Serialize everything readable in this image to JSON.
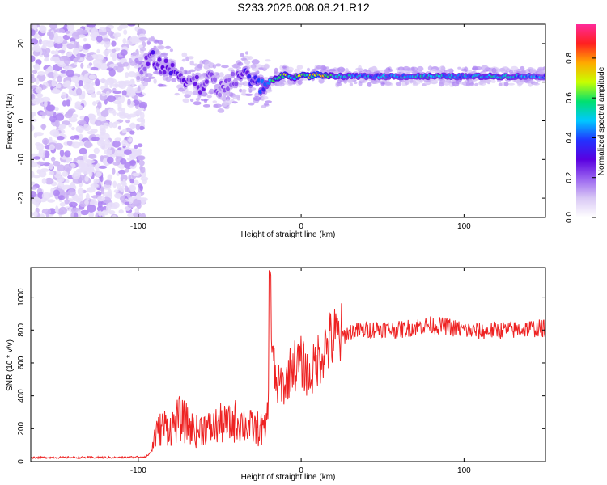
{
  "title": "S233.2026.008.08.21.R12",
  "colors": {
    "snr_line": "#ee2222",
    "colormap": [
      "#ffffff",
      "#d9c8f5",
      "#9a64f0",
      "#5a00e0",
      "#2233ff",
      "#00c8ff",
      "#00e070",
      "#c8ff00",
      "#ffaa00",
      "#ff2020",
      "#ff2a9a"
    ]
  },
  "chart_data": [
    {
      "type": "heatmap",
      "xlabel": "Height of straight line (km)",
      "ylabel": "Frequency (Hz)",
      "xlim": [
        -166,
        150
      ],
      "ylim": [
        -25,
        25
      ],
      "xticks": [
        -100,
        0,
        100
      ],
      "yticks": [
        -20,
        -10,
        0,
        10,
        20
      ],
      "colorbar": {
        "label": "Normalized spectral amplitude",
        "range": [
          0,
          0.97
        ],
        "ticks": [
          0.0,
          0.2,
          0.4,
          0.6,
          0.8
        ]
      },
      "ridge": {
        "x": [
          -100,
          -95,
          -90,
          -85,
          -80,
          -75,
          -70,
          -65,
          -60,
          -55,
          -50,
          -45,
          -40,
          -35,
          -30,
          -25,
          -20,
          -15,
          -10,
          -5,
          0,
          5,
          10,
          20,
          40,
          60,
          80,
          100,
          120,
          150
        ],
        "freq": [
          11,
          15,
          16,
          14,
          13,
          12,
          11,
          10,
          9,
          11,
          8,
          9,
          11,
          13,
          10,
          9,
          10,
          11,
          12,
          11,
          12,
          11.5,
          12,
          11.5,
          11.5,
          11.5,
          11.5,
          11.5,
          11.5,
          11.5
        ],
        "amplitude": [
          0.18,
          0.3,
          0.35,
          0.3,
          0.35,
          0.32,
          0.3,
          0.28,
          0.3,
          0.3,
          0.25,
          0.25,
          0.3,
          0.35,
          0.4,
          0.45,
          0.55,
          0.7,
          0.8,
          0.6,
          0.8,
          0.75,
          0.9,
          0.6,
          0.55,
          0.55,
          0.6,
          0.55,
          0.6,
          0.5
        ]
      }
    },
    {
      "type": "line",
      "xlabel": "Height of straight line (km)",
      "ylabel": "SNR (10 * v/v)",
      "xlim": [
        -166,
        150
      ],
      "ylim": [
        0,
        1180
      ],
      "xticks": [
        -100,
        0,
        100
      ],
      "yticks": [
        0,
        200,
        400,
        600,
        800,
        1000
      ],
      "series": [
        {
          "x": [
            -166,
            -150,
            -130,
            -110,
            -95,
            -92,
            -90,
            -85,
            -80,
            -75,
            -70,
            -65,
            -60,
            -55,
            -50,
            -45,
            -40,
            -35,
            -30,
            -25,
            -22,
            -20,
            -19,
            -18,
            -15,
            -12,
            -10,
            -8,
            -5,
            -3,
            0,
            3,
            5,
            10,
            15,
            20,
            25,
            30,
            40,
            50,
            60,
            70,
            80,
            90,
            100,
            110,
            120,
            130,
            140,
            150
          ],
          "y": [
            25,
            25,
            25,
            25,
            30,
            60,
            150,
            220,
            200,
            260,
            230,
            180,
            210,
            200,
            230,
            220,
            250,
            230,
            200,
            200,
            180,
            400,
            1170,
            650,
            450,
            480,
            450,
            520,
            600,
            580,
            600,
            560,
            500,
            620,
            700,
            750,
            760,
            790,
            800,
            810,
            800,
            820,
            830,
            820,
            800,
            790,
            800,
            800,
            810,
            810
          ]
        }
      ]
    }
  ]
}
